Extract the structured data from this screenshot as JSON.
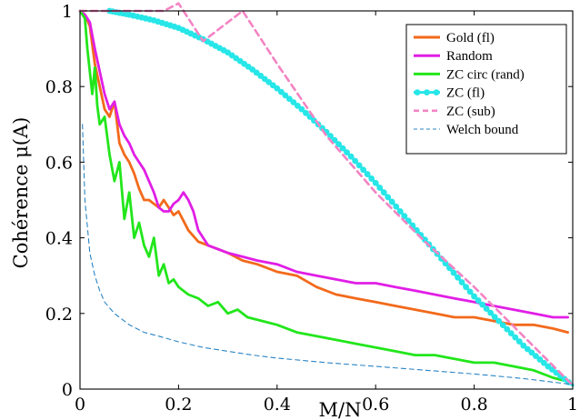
{
  "chart_data": {
    "type": "line",
    "xlabel": "M/N",
    "ylabel": "Cohérence μ(A)",
    "xlim": [
      0,
      1
    ],
    "ylim": [
      0,
      1
    ],
    "x_ticks": [
      "0",
      "0.2",
      "0.4",
      "0.6",
      "0.8",
      "1"
    ],
    "y_ticks": [
      "0",
      "0.2",
      "0.4",
      "0.6",
      "0.8",
      "1"
    ],
    "grid": false,
    "legend_position": "top-right",
    "series": [
      {
        "name": "Gold (fl)",
        "color": "#f26a1b",
        "style": "solid",
        "x": [
          0,
          0.01,
          0.02,
          0.03,
          0.04,
          0.05,
          0.06,
          0.07,
          0.08,
          0.09,
          0.1,
          0.11,
          0.12,
          0.13,
          0.14,
          0.15,
          0.16,
          0.17,
          0.18,
          0.19,
          0.2,
          0.22,
          0.24,
          0.26,
          0.28,
          0.3,
          0.33,
          0.36,
          0.4,
          0.44,
          0.48,
          0.52,
          0.56,
          0.6,
          0.64,
          0.68,
          0.72,
          0.76,
          0.8,
          0.84,
          0.88,
          0.92,
          0.96,
          0.99
        ],
        "y": [
          1.0,
          0.99,
          0.96,
          0.86,
          0.8,
          0.74,
          0.72,
          0.76,
          0.65,
          0.62,
          0.6,
          0.57,
          0.53,
          0.5,
          0.5,
          0.49,
          0.48,
          0.5,
          0.48,
          0.46,
          0.47,
          0.42,
          0.39,
          0.38,
          0.37,
          0.36,
          0.34,
          0.33,
          0.31,
          0.3,
          0.27,
          0.25,
          0.24,
          0.23,
          0.22,
          0.21,
          0.2,
          0.19,
          0.19,
          0.18,
          0.17,
          0.17,
          0.16,
          0.15
        ]
      },
      {
        "name": "Random",
        "color": "#e11ee6",
        "style": "solid",
        "x": [
          0,
          0.01,
          0.02,
          0.03,
          0.04,
          0.05,
          0.06,
          0.07,
          0.08,
          0.09,
          0.1,
          0.11,
          0.12,
          0.13,
          0.14,
          0.15,
          0.16,
          0.17,
          0.18,
          0.19,
          0.2,
          0.21,
          0.22,
          0.23,
          0.24,
          0.26,
          0.28,
          0.3,
          0.33,
          0.36,
          0.4,
          0.44,
          0.48,
          0.52,
          0.56,
          0.6,
          0.64,
          0.68,
          0.72,
          0.76,
          0.8,
          0.84,
          0.88,
          0.92,
          0.96,
          0.99
        ],
        "y": [
          1.0,
          0.99,
          0.97,
          0.9,
          0.84,
          0.78,
          0.74,
          0.76,
          0.7,
          0.67,
          0.65,
          0.62,
          0.6,
          0.58,
          0.55,
          0.52,
          0.48,
          0.47,
          0.47,
          0.49,
          0.5,
          0.52,
          0.5,
          0.47,
          0.42,
          0.38,
          0.37,
          0.36,
          0.35,
          0.34,
          0.33,
          0.31,
          0.3,
          0.29,
          0.28,
          0.28,
          0.27,
          0.26,
          0.25,
          0.24,
          0.23,
          0.22,
          0.21,
          0.2,
          0.19,
          0.19
        ]
      },
      {
        "name": "ZC circ (rand)",
        "color": "#22e61b",
        "style": "solid",
        "x": [
          0,
          0.01,
          0.015,
          0.02,
          0.025,
          0.03,
          0.035,
          0.04,
          0.05,
          0.06,
          0.07,
          0.08,
          0.09,
          0.1,
          0.11,
          0.12,
          0.13,
          0.14,
          0.15,
          0.16,
          0.17,
          0.18,
          0.19,
          0.2,
          0.22,
          0.24,
          0.26,
          0.28,
          0.3,
          0.32,
          0.34,
          0.37,
          0.4,
          0.44,
          0.48,
          0.52,
          0.56,
          0.6,
          0.64,
          0.68,
          0.72,
          0.76,
          0.8,
          0.84,
          0.88,
          0.92,
          0.96,
          0.99
        ],
        "y": [
          1.0,
          0.98,
          0.9,
          0.84,
          0.78,
          0.85,
          0.75,
          0.7,
          0.72,
          0.62,
          0.55,
          0.6,
          0.45,
          0.52,
          0.4,
          0.44,
          0.38,
          0.35,
          0.4,
          0.3,
          0.33,
          0.28,
          0.29,
          0.27,
          0.25,
          0.24,
          0.22,
          0.23,
          0.2,
          0.21,
          0.19,
          0.18,
          0.17,
          0.15,
          0.14,
          0.13,
          0.12,
          0.11,
          0.1,
          0.09,
          0.09,
          0.08,
          0.07,
          0.07,
          0.06,
          0.05,
          0.03,
          0.02
        ]
      },
      {
        "name": "ZC (fl)",
        "color": "#27e6e8",
        "style": "solid-dots",
        "x": [
          0.06,
          0.1,
          0.15,
          0.2,
          0.25,
          0.3,
          0.35,
          0.4,
          0.45,
          0.5,
          0.55,
          0.6,
          0.65,
          0.7,
          0.75,
          0.8,
          0.85,
          0.9,
          0.95,
          1.0
        ],
        "y": [
          1.0,
          0.99,
          0.975,
          0.955,
          0.925,
          0.89,
          0.845,
          0.795,
          0.74,
          0.68,
          0.615,
          0.545,
          0.47,
          0.395,
          0.32,
          0.245,
          0.18,
          0.115,
          0.06,
          0.01
        ]
      },
      {
        "name": "ZC (sub)",
        "color": "#f384c4",
        "style": "dashed",
        "x": [
          0.0,
          0.17,
          0.2,
          0.25,
          0.33,
          0.4,
          0.5,
          0.6,
          0.7,
          0.8,
          0.9,
          1.0
        ],
        "y": [
          1.0,
          1.0,
          1.02,
          0.92,
          1.0,
          0.86,
          0.67,
          0.52,
          0.39,
          0.27,
          0.14,
          0.01
        ]
      },
      {
        "name": "Welch bound",
        "color": "#2a84c4",
        "style": "thin-dashed",
        "x": [
          0.005,
          0.01,
          0.02,
          0.03,
          0.04,
          0.05,
          0.07,
          0.1,
          0.13,
          0.16,
          0.2,
          0.25,
          0.3,
          0.35,
          0.4,
          0.5,
          0.6,
          0.7,
          0.8,
          0.9,
          0.95,
          1.0
        ],
        "y": [
          0.7,
          0.5,
          0.36,
          0.3,
          0.26,
          0.23,
          0.2,
          0.17,
          0.15,
          0.14,
          0.125,
          0.11,
          0.1,
          0.09,
          0.082,
          0.07,
          0.06,
          0.05,
          0.04,
          0.028,
          0.02,
          0.012
        ]
      }
    ]
  }
}
